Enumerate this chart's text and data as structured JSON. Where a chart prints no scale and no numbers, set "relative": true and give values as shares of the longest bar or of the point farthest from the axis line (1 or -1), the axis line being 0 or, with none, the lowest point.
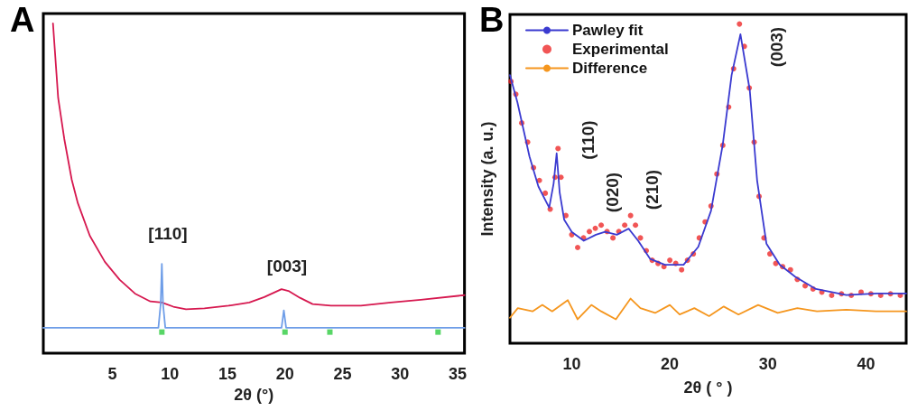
{
  "chart_data": [
    {
      "type": "line",
      "title": "A",
      "xlabel": "2θ (°)",
      "relative": true,
      "xlim": [
        -1,
        35.6
      ],
      "xticks": [
        5,
        10,
        15,
        20,
        25,
        30,
        35
      ],
      "grid": false,
      "legend": false,
      "marker": "none",
      "line_style": "solid",
      "annotations": [
        "[110]",
        "[003]"
      ],
      "series": [
        {
          "color": "#d6184f",
          "x": [
            -0.16,
            0.29,
            0.82,
            1.47,
            2.0,
            3.04,
            4.35,
            5.63,
            6.96,
            8.3,
            9.3,
            10.3,
            11.4,
            13.0,
            15.1,
            16.9,
            18.2,
            19.7,
            20.3,
            21.3,
            22.4,
            24.0,
            26.6,
            29.2,
            31.8,
            35.6
          ],
          "values": [
            1.0,
            0.774,
            0.65,
            0.526,
            0.455,
            0.356,
            0.277,
            0.223,
            0.181,
            0.157,
            0.154,
            0.141,
            0.133,
            0.136,
            0.144,
            0.154,
            0.17,
            0.194,
            0.189,
            0.168,
            0.149,
            0.144,
            0.144,
            0.154,
            0.162,
            0.176
          ]
        },
        {
          "color": "#6f9ee8",
          "x": [
            -1,
            9.0,
            9.2,
            9.3,
            9.4,
            9.6,
            19.7,
            19.9,
            20.1,
            35.6
          ],
          "values": [
            0.077,
            0.077,
            0.15,
            0.271,
            0.15,
            0.077,
            0.077,
            0.13,
            0.077,
            0.077
          ]
        },
        {
          "type": "scatter",
          "marker": "square",
          "color": "#2ecc40",
          "x": [
            9.3,
            20.0,
            23.9,
            33.3
          ],
          "values": [
            0.064,
            0.064,
            0.064,
            0.064
          ]
        }
      ]
    },
    {
      "type": "line",
      "title": "B",
      "xlabel": "2θ ( ° )",
      "ylabel": "Intensity (a. u.)",
      "relative": true,
      "xlim": [
        3.7,
        44.1
      ],
      "xticks": [
        10,
        20,
        30,
        40
      ],
      "grid": false,
      "legend": "top left",
      "marker": "none",
      "line_style": "solid",
      "annotations": [
        "(110)",
        "(020)",
        "(210)",
        "(003)"
      ],
      "series": [
        {
          "name": "Pawley fit",
          "color": "#3a3ad0",
          "x": [
            3.7,
            4.46,
            5.69,
            6.6,
            7.7,
            8.15,
            8.46,
            8.77,
            9.23,
            10.0,
            11.23,
            12.46,
            13.4,
            14.6,
            15.8,
            16.77,
            18.0,
            19.5,
            21.4,
            22.9,
            24.2,
            25.4,
            26.3,
            27.2,
            28.15,
            28.9,
            29.85,
            31.2,
            32.8,
            34.9,
            38.0,
            41.1,
            44.1
          ],
          "values": [
            0.84,
            0.755,
            0.585,
            0.491,
            0.425,
            0.5,
            0.595,
            0.472,
            0.387,
            0.349,
            0.321,
            0.34,
            0.349,
            0.34,
            0.359,
            0.321,
            0.264,
            0.246,
            0.246,
            0.302,
            0.415,
            0.623,
            0.84,
            0.968,
            0.793,
            0.51,
            0.312,
            0.246,
            0.208,
            0.17,
            0.151,
            0.156,
            0.156
          ]
        },
        {
          "name": "Experimental",
          "type": "scatter",
          "marker": "circle",
          "color": "#ee2b2b",
          "x": [
            3.8,
            4.3,
            4.9,
            5.5,
            6.1,
            6.7,
            7.3,
            7.8,
            8.3,
            8.6,
            8.9,
            9.4,
            10.0,
            10.6,
            11.2,
            11.8,
            12.4,
            13.0,
            13.6,
            14.2,
            14.8,
            15.4,
            16.0,
            16.5,
            17.0,
            17.6,
            18.2,
            18.8,
            19.4,
            20.0,
            20.6,
            21.2,
            21.8,
            22.4,
            23.0,
            23.6,
            24.2,
            24.8,
            25.4,
            26.0,
            26.5,
            27.1,
            27.6,
            28.1,
            28.6,
            29.1,
            29.6,
            30.2,
            30.8,
            31.5,
            32.3,
            33.0,
            33.8,
            34.6,
            35.5,
            36.5,
            37.5,
            38.5,
            39.5,
            40.5,
            41.5,
            42.5,
            43.5
          ],
          "values": [
            0.82,
            0.78,
            0.69,
            0.63,
            0.55,
            0.51,
            0.47,
            0.42,
            0.52,
            0.61,
            0.52,
            0.4,
            0.34,
            0.3,
            0.33,
            0.35,
            0.36,
            0.37,
            0.35,
            0.33,
            0.35,
            0.37,
            0.4,
            0.37,
            0.33,
            0.29,
            0.26,
            0.25,
            0.24,
            0.26,
            0.25,
            0.23,
            0.26,
            0.28,
            0.33,
            0.38,
            0.43,
            0.53,
            0.62,
            0.74,
            0.86,
            1.0,
            0.93,
            0.8,
            0.63,
            0.46,
            0.33,
            0.28,
            0.25,
            0.24,
            0.23,
            0.2,
            0.18,
            0.17,
            0.16,
            0.15,
            0.155,
            0.15,
            0.16,
            0.155,
            0.15,
            0.155,
            0.15
          ]
        },
        {
          "name": "Difference",
          "color": "#f5961e",
          "x": [
            3.7,
            4.5,
            6.0,
            7.0,
            8.0,
            9.6,
            10.6,
            12.0,
            13.0,
            14.5,
            16.0,
            17.0,
            18.5,
            20.0,
            21.0,
            22.5,
            24.0,
            25.5,
            27.0,
            29.0,
            31.0,
            33.0,
            35.0,
            38.0,
            41.0,
            44.1
          ],
          "values": [
            0.08,
            0.11,
            0.1,
            0.12,
            0.1,
            0.135,
            0.075,
            0.12,
            0.1,
            0.075,
            0.14,
            0.11,
            0.095,
            0.12,
            0.09,
            0.11,
            0.085,
            0.115,
            0.09,
            0.12,
            0.095,
            0.11,
            0.1,
            0.105,
            0.1,
            0.1
          ]
        }
      ]
    }
  ]
}
